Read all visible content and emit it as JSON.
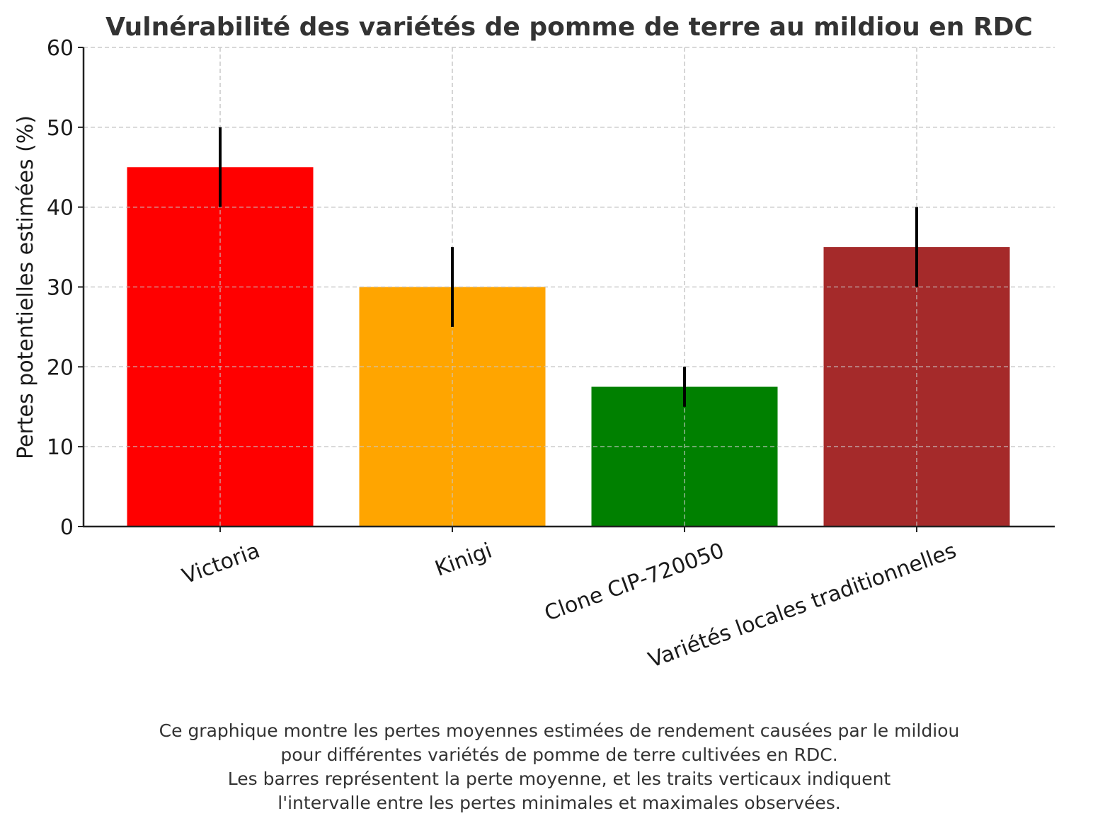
{
  "chart_data": {
    "type": "bar",
    "title": "Vulnérabilité des variétés de pomme de terre au mildiou en RDC",
    "xlabel": "",
    "ylabel": "Pertes potentielles estimées (%)",
    "ylim": [
      0,
      60
    ],
    "yticks": [
      0,
      10,
      20,
      30,
      40,
      50,
      60
    ],
    "grid": true,
    "categories": [
      "Victoria",
      "Kinigi",
      "Clone CIP-720050",
      "Variétés locales traditionnelles"
    ],
    "values": [
      45,
      30,
      17.5,
      35
    ],
    "error_min": [
      40,
      25,
      15,
      30
    ],
    "error_max": [
      50,
      35,
      20,
      40
    ],
    "colors": [
      "#ff0000",
      "#ffa500",
      "#008000",
      "#a52a2a"
    ]
  },
  "caption": [
    "Ce graphique montre les pertes moyennes estimées de rendement causées par le mildiou",
    "pour différentes variétés de pomme de terre cultivées en RDC.",
    "Les barres représentent la perte moyenne, et les traits verticaux indiquent",
    "l'intervalle entre les pertes minimales et maximales observées."
  ]
}
